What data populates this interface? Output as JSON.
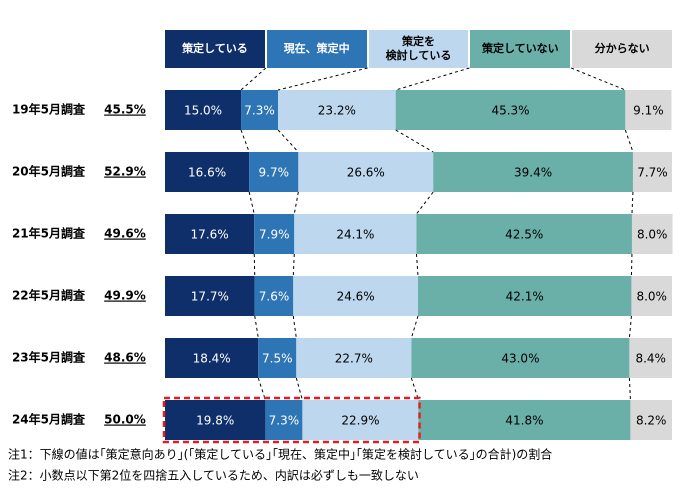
{
  "chart_data": {
    "type": "bar",
    "categories": [
      "19年5月調査",
      "20年5月調査",
      "21年5月調査",
      "22年5月調査",
      "23年5月調査",
      "24年5月調査"
    ],
    "xlim": [
      0,
      100
    ],
    "series": [
      {
        "name": "策定している",
        "color": "#0f2f6b",
        "values": [
          15.0,
          16.6,
          17.6,
          17.7,
          18.4,
          19.8
        ],
        "value_labels": [
          "15.0%",
          "16.6%",
          "17.6%",
          "17.7%",
          "18.4%",
          "19.8%"
        ]
      },
      {
        "name": "現在、策定中",
        "color": "#2e75b6",
        "values": [
          7.3,
          9.7,
          7.9,
          7.6,
          7.5,
          7.3
        ],
        "value_labels": [
          "7.3%",
          "9.7%",
          "7.9%",
          "7.6%",
          "7.5%",
          "7.3%"
        ]
      },
      {
        "name": "策定を\n検討している",
        "color": "#bdd7ee",
        "values": [
          23.2,
          26.6,
          24.1,
          24.6,
          22.7,
          22.9
        ],
        "value_labels": [
          "23.2%",
          "26.6%",
          "24.1%",
          "24.6%",
          "22.7%",
          "22.9%"
        ]
      },
      {
        "name": "策定していない",
        "color": "#6aafa8",
        "values": [
          45.3,
          39.4,
          42.5,
          42.1,
          43.0,
          41.8
        ],
        "value_labels": [
          "45.3%",
          "39.4%",
          "42.5%",
          "42.1%",
          "43.0%",
          "41.8%"
        ]
      },
      {
        "name": "分からない",
        "color": "#d9d9d9",
        "values": [
          9.1,
          7.7,
          8.0,
          8.0,
          8.4,
          8.2
        ],
        "value_labels": [
          "9.1%",
          "7.7%",
          "8.0%",
          "8.0%",
          "8.4%",
          "8.2%"
        ]
      }
    ],
    "summary": {
      "values": [
        45.5,
        52.9,
        49.6,
        49.9,
        48.6,
        50.0
      ],
      "value_labels": [
        "45.5%",
        "52.9%",
        "49.6%",
        "49.9%",
        "48.6%",
        "50.0%"
      ]
    },
    "notes": [
      "注1：下線の値は｢策定意向あり｣(｢策定している｣｢現在、策定中｣｢策定を検討している｣の合計)の割合",
      "注2：小数点以下第2位を四捨五入しているため、内訳は必ずしも一致しない"
    ]
  }
}
